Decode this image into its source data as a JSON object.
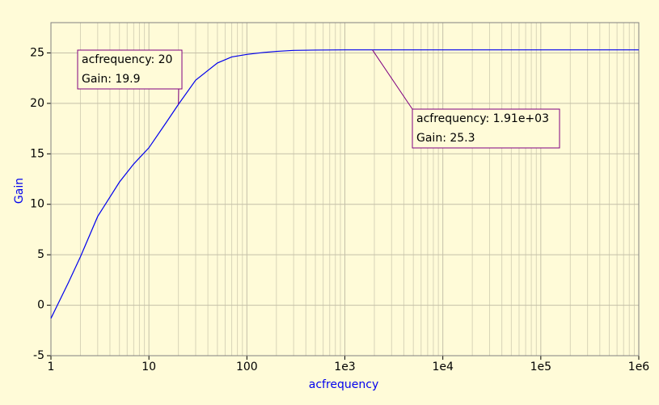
{
  "chart_data": {
    "type": "line",
    "x_label": "acfrequency",
    "y_label": "Gain",
    "x_log": true,
    "grid": true,
    "minor_grid": true,
    "xlim": [
      1,
      1000000
    ],
    "ylim": [
      -5,
      28
    ],
    "xticks": [
      1,
      10,
      100,
      {
        "value": 1000,
        "label": "1e3"
      },
      {
        "value": 10000,
        "label": "1e4"
      },
      {
        "value": 100000,
        "label": "1e5"
      },
      {
        "value": 1000000,
        "label": "1e6"
      }
    ],
    "yticks": [
      -5,
      0,
      5,
      10,
      15,
      20,
      25
    ],
    "x": [
      1,
      1.5,
      2,
      3,
      5,
      7,
      10,
      15,
      20,
      30,
      50,
      70,
      100,
      150,
      200,
      300,
      500,
      1000,
      1910,
      10000,
      100000,
      1000000
    ],
    "series": [
      {
        "name": "Gain",
        "color": "#0000ee",
        "values": [
          -1.3,
          2.2,
          4.8,
          8.8,
          12.2,
          14.0,
          15.6,
          18.1,
          19.9,
          22.3,
          24.0,
          24.6,
          24.85,
          25.05,
          25.15,
          25.25,
          25.28,
          25.3,
          25.3,
          25.3,
          25.3,
          25.3
        ]
      }
    ],
    "annotations": [
      {
        "x": 20,
        "y": 19.9,
        "text": [
          "acfrequency: 20",
          "Gain: 19.9"
        ]
      },
      {
        "x": 1910,
        "y": 25.3,
        "text": [
          "acfrequency: 1.91e+03",
          "Gain: 25.3"
        ]
      }
    ]
  }
}
